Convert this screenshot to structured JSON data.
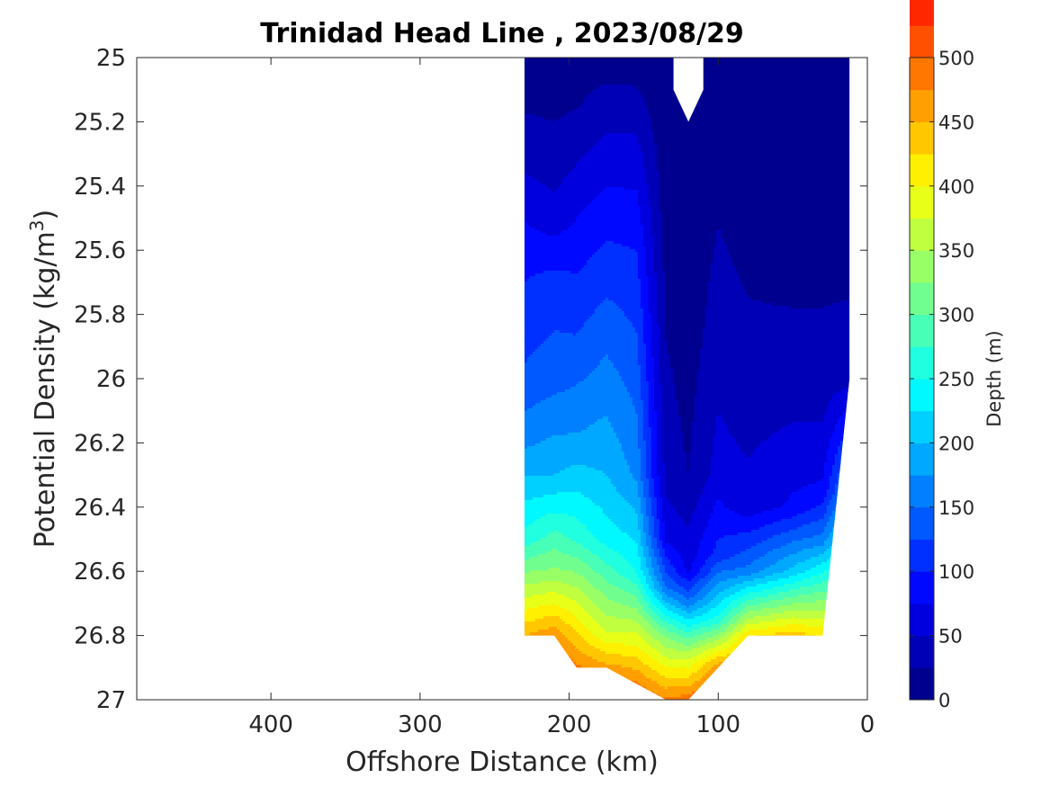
{
  "chart_data": {
    "type": "contour",
    "title": "Trinidad Head Line , 2023/08/29",
    "xlabel": "Offshore Distance (km)",
    "ylabel": "Potential Density (kg/m3)",
    "ylabel_main": "Potential Density (kg/m",
    "ylabel_sup": "3",
    "ylabel_end": ")",
    "colorbar_label": "Depth (m)",
    "xlim": [
      490,
      0
    ],
    "x_reversed": true,
    "ylim": [
      25,
      27
    ],
    "y_reversed": true,
    "x_ticks": [
      400,
      300,
      200,
      100,
      0
    ],
    "x_tick_labels": [
      "400",
      "300",
      "200",
      "100",
      "0"
    ],
    "y_ticks": [
      25,
      25.2,
      25.4,
      25.6,
      25.8,
      26,
      26.2,
      26.4,
      26.6,
      26.8,
      27
    ],
    "y_tick_labels": [
      "25",
      "25.2",
      "25.4",
      "25.6",
      "25.8",
      "26",
      "26.2",
      "26.4",
      "26.6",
      "26.8",
      "27"
    ],
    "colorbar_ticks": [
      0,
      50,
      100,
      150,
      200,
      250,
      300,
      350,
      400,
      450,
      500
    ],
    "colorbar_tick_labels": [
      "0",
      "50",
      "100",
      "150",
      "200",
      "250",
      "300",
      "350",
      "400",
      "450",
      "500"
    ],
    "contour_interval": 25,
    "colormap": "jet",
    "level_colors": [
      "#00008F",
      "#0000B7",
      "#0000DF",
      "#0008FF",
      "#0030FF",
      "#0058FF",
      "#0080FF",
      "#00A8FF",
      "#00D0FF",
      "#00F8FF",
      "#20FFDF",
      "#48FFB7",
      "#70FF8F",
      "#98FF67",
      "#C0FF3F",
      "#E8FF17",
      "#FFEF00",
      "#FFC700",
      "#FF9F00",
      "#FF7700",
      "#FF4F00",
      "#FF2700",
      "#FF0000",
      "#D70000",
      "#AF0000"
    ],
    "data_extent_x_km": [
      12,
      230
    ],
    "profiles": [
      {
        "x": 230,
        "d": [
          [
            25.0,
            5
          ],
          [
            25.3,
            40
          ],
          [
            25.6,
            90
          ],
          [
            26.0,
            130
          ],
          [
            26.2,
            170
          ],
          [
            26.5,
            260
          ],
          [
            26.8,
            450
          ]
        ]
      },
      {
        "x": 210,
        "d": [
          [
            25.0,
            5
          ],
          [
            25.3,
            35
          ],
          [
            25.5,
            60
          ],
          [
            25.7,
            110
          ],
          [
            26.0,
            140
          ],
          [
            26.3,
            200
          ],
          [
            26.6,
            330
          ],
          [
            26.8,
            470
          ]
        ]
      },
      {
        "x": 195,
        "d": [
          [
            25.0,
            5
          ],
          [
            25.2,
            30
          ],
          [
            25.6,
            90
          ],
          [
            25.9,
            130
          ],
          [
            26.2,
            180
          ],
          [
            26.5,
            270
          ],
          [
            26.8,
            430
          ],
          [
            26.9,
            480
          ]
        ]
      },
      {
        "x": 175,
        "d": [
          [
            25.0,
            5
          ],
          [
            25.1,
            30
          ],
          [
            25.5,
            90
          ],
          [
            25.85,
            140
          ],
          [
            26.3,
            200
          ],
          [
            26.5,
            240
          ],
          [
            26.8,
            380
          ],
          [
            26.9,
            460
          ]
        ]
      },
      {
        "x": 155,
        "d": [
          [
            25.0,
            10
          ],
          [
            25.3,
            60
          ],
          [
            25.6,
            100
          ],
          [
            26.0,
            140
          ],
          [
            26.3,
            170
          ],
          [
            26.6,
            250
          ],
          [
            26.8,
            380
          ],
          [
            26.95,
            480
          ]
        ]
      },
      {
        "x": 135,
        "d": [
          [
            25.0,
            2
          ],
          [
            25.6,
            15
          ],
          [
            26.3,
            40
          ],
          [
            26.5,
            70
          ],
          [
            26.65,
            150
          ],
          [
            26.8,
            320
          ],
          [
            27.0,
            480
          ]
        ]
      },
      {
        "x": 120,
        "d": [
          [
            25.0,
            0
          ],
          [
            25.8,
            10
          ],
          [
            26.3,
            25
          ],
          [
            26.6,
            70
          ],
          [
            26.7,
            160
          ],
          [
            26.85,
            350
          ],
          [
            27.0,
            490
          ]
        ]
      },
      {
        "x": 100,
        "d": [
          [
            25.0,
            0
          ],
          [
            25.4,
            20
          ],
          [
            25.9,
            40
          ],
          [
            26.3,
            60
          ],
          [
            26.55,
            110
          ],
          [
            26.75,
            260
          ],
          [
            26.9,
            470
          ]
        ]
      },
      {
        "x": 80,
        "d": [
          [
            25.0,
            0
          ],
          [
            25.4,
            10
          ],
          [
            26.1,
            40
          ],
          [
            26.4,
            60
          ],
          [
            26.6,
            160
          ],
          [
            26.8,
            420
          ]
        ]
      },
      {
        "x": 50,
        "d": [
          [
            25.0,
            0
          ],
          [
            25.6,
            15
          ],
          [
            26.05,
            40
          ],
          [
            26.4,
            80
          ],
          [
            26.6,
            210
          ],
          [
            26.8,
            440
          ]
        ]
      },
      {
        "x": 30,
        "d": [
          [
            25.0,
            0
          ],
          [
            25.7,
            20
          ],
          [
            26.1,
            45
          ],
          [
            26.35,
            80
          ],
          [
            26.5,
            160
          ],
          [
            26.8,
            420
          ]
        ]
      },
      {
        "x": 12,
        "d": [
          [
            25.0,
            0
          ],
          [
            25.5,
            10
          ],
          [
            26.0,
            40
          ]
        ]
      }
    ]
  }
}
